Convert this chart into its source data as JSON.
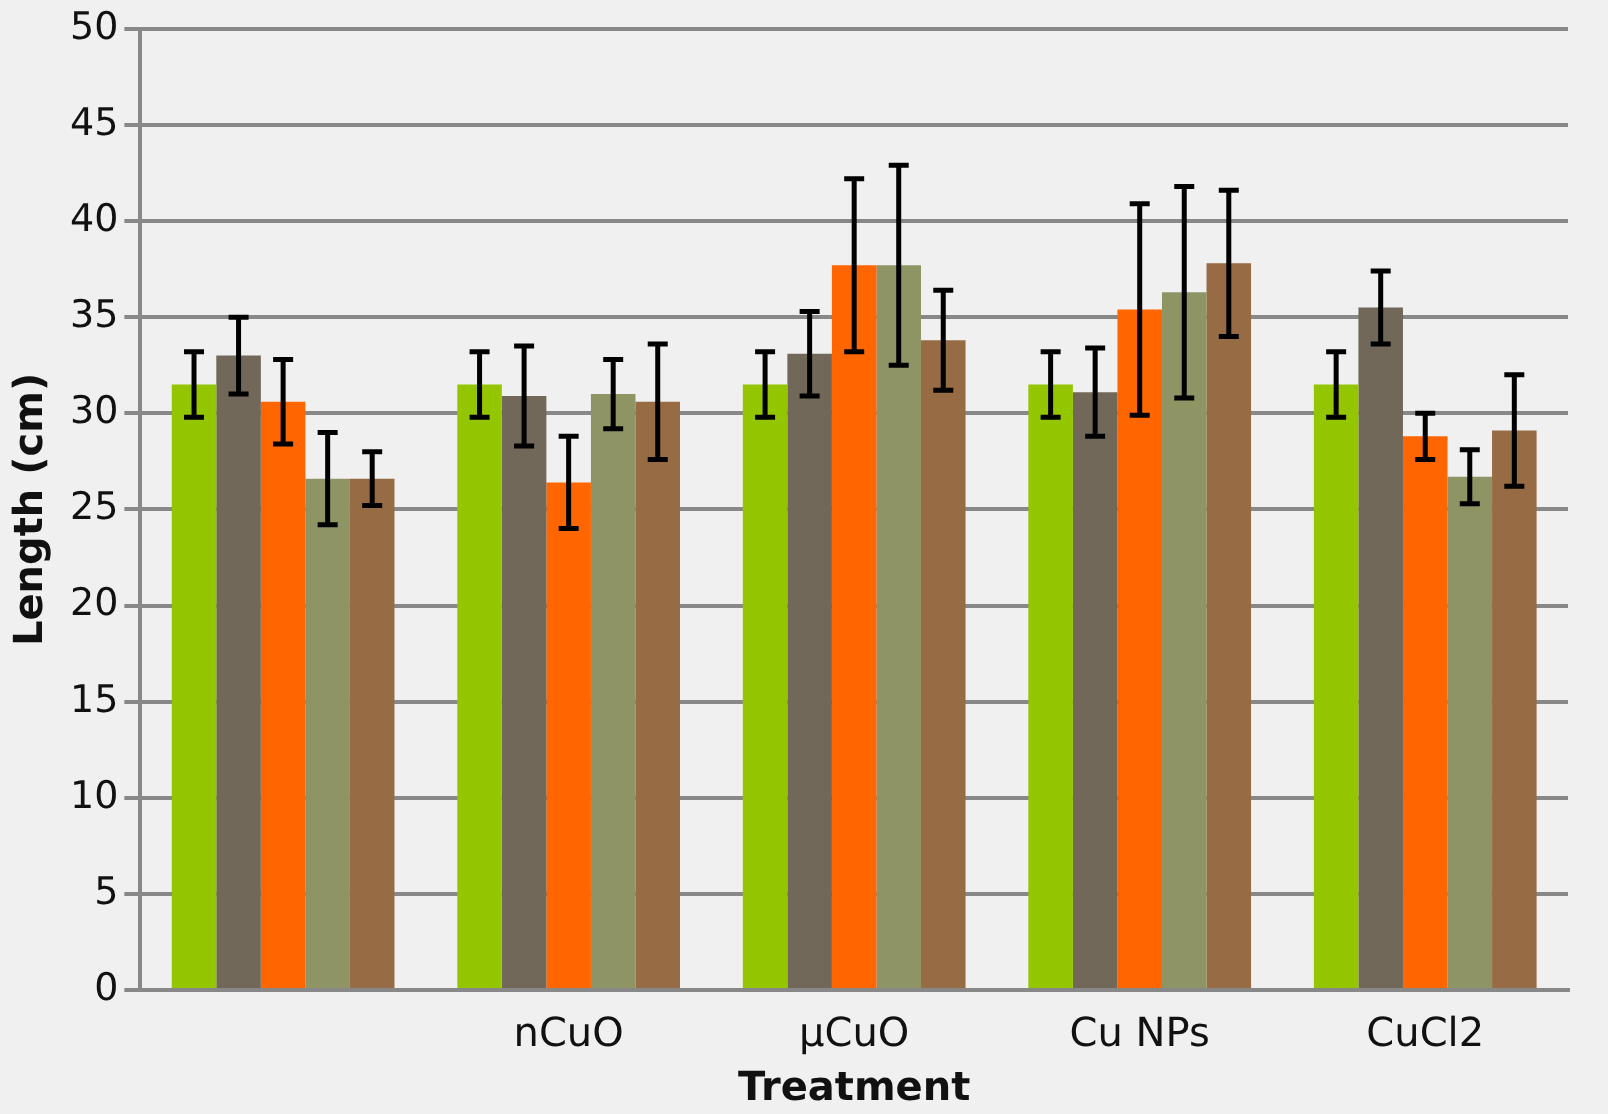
{
  "chart_data": {
    "type": "bar",
    "xlabel": "Treatment",
    "ylabel": "Length (cm)",
    "categories": [
      null,
      "nCuO",
      "µCuO",
      "Cu NPs",
      "CuCl2"
    ],
    "series": [
      {
        "color": "#94c600",
        "values": [
          31.5,
          31.5,
          31.5,
          31.5,
          31.5
        ],
        "errors": [
          1.7,
          1.7,
          1.7,
          1.7,
          1.7
        ]
      },
      {
        "color": "#71685a",
        "values": [
          33.0,
          30.9,
          33.1,
          31.1,
          35.5
        ],
        "errors": [
          2.0,
          2.6,
          2.2,
          2.3,
          1.9
        ]
      },
      {
        "color": "#ff6600",
        "values": [
          30.6,
          26.4,
          37.7,
          35.4,
          28.8
        ],
        "errors": [
          2.2,
          2.4,
          4.5,
          5.5,
          1.2
        ]
      },
      {
        "color": "#8f9464",
        "values": [
          26.6,
          31.0,
          37.7,
          36.3,
          26.7
        ],
        "errors": [
          2.4,
          1.8,
          5.2,
          5.5,
          1.4
        ]
      },
      {
        "color": "#976b43",
        "values": [
          26.6,
          30.6,
          33.8,
          37.8,
          29.1
        ],
        "errors": [
          1.4,
          3.0,
          2.6,
          3.8,
          2.9
        ]
      }
    ],
    "ylim": [
      0,
      50
    ],
    "yticks": [
      0,
      5,
      10,
      15,
      20,
      25,
      30,
      35,
      40,
      45,
      50
    ],
    "grid": "y",
    "legend": false
  }
}
